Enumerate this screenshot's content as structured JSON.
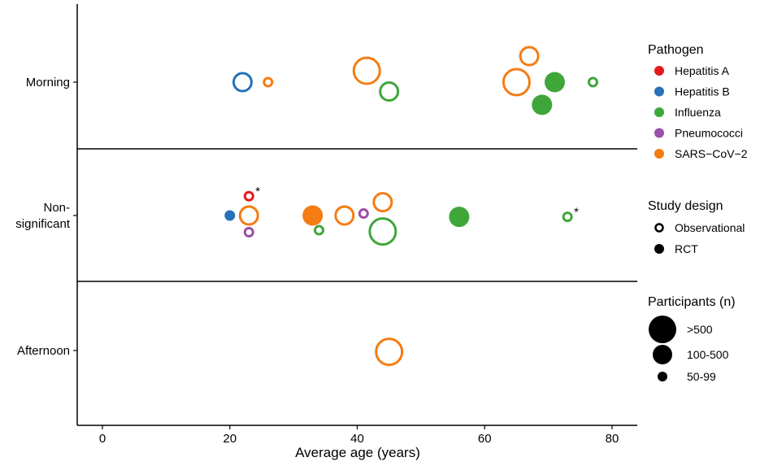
{
  "chart_data": {
    "type": "scatter",
    "title": "",
    "xlabel": "Average age (years)",
    "ylabel": "",
    "xlim": [
      -4,
      84
    ],
    "xticks": [
      0,
      20,
      40,
      60,
      80
    ],
    "xtick_labels": [
      "0",
      "20",
      "40",
      "60",
      "80"
    ],
    "grid": false,
    "rows": [
      {
        "key": "morning",
        "label": [
          "Morning"
        ]
      },
      {
        "key": "ns",
        "label": [
          "Non-",
          "significant"
        ]
      },
      {
        "key": "afternoon",
        "label": [
          "Afternoon"
        ]
      }
    ],
    "pathogens": [
      {
        "name": "Hepatitis A",
        "color": "#e41a1c"
      },
      {
        "name": "Hepatitis B",
        "color": "#2671b8"
      },
      {
        "name": "Influenza",
        "color": "#3fa63a"
      },
      {
        "name": "Pneumococci",
        "color": "#9a4fa8"
      },
      {
        "name": "SARS−CoV−2",
        "color": "#f57c12"
      }
    ],
    "designs": [
      "Observational",
      "RCT"
    ],
    "size_categories": [
      ">500",
      "100-500",
      "50-99"
    ],
    "points": [
      {
        "row": "morning",
        "x": 22,
        "offset": 0,
        "pathogen": "Hepatitis B",
        "design": "Observational",
        "size": "100-500"
      },
      {
        "row": "morning",
        "x": 26,
        "offset": 0,
        "pathogen": "SARS−CoV−2",
        "design": "Observational",
        "size": "50-99"
      },
      {
        "row": "morning",
        "x": 41.5,
        "offset": 0.17,
        "pathogen": "SARS−CoV−2",
        "design": "Observational",
        "size": ">500"
      },
      {
        "row": "morning",
        "x": 45,
        "offset": -0.14,
        "pathogen": "Influenza",
        "design": "Observational",
        "size": "100-500"
      },
      {
        "row": "morning",
        "x": 67,
        "offset": 0.39,
        "pathogen": "SARS−CoV−2",
        "design": "Observational",
        "size": "100-500"
      },
      {
        "row": "morning",
        "x": 65,
        "offset": 0,
        "pathogen": "SARS−CoV−2",
        "design": "Observational",
        "size": ">500"
      },
      {
        "row": "morning",
        "x": 71,
        "offset": 0,
        "pathogen": "Influenza",
        "design": "RCT",
        "size": "100-500"
      },
      {
        "row": "morning",
        "x": 69,
        "offset": -0.34,
        "pathogen": "Influenza",
        "design": "RCT",
        "size": "100-500"
      },
      {
        "row": "morning",
        "x": 77,
        "offset": 0,
        "pathogen": "Influenza",
        "design": "Observational",
        "size": "50-99"
      },
      {
        "row": "ns",
        "x": 23,
        "offset": 0.29,
        "pathogen": "Hepatitis A",
        "design": "Observational",
        "size": "50-99",
        "note": "*"
      },
      {
        "row": "ns",
        "x": 20,
        "offset": 0,
        "pathogen": "Hepatitis B",
        "design": "RCT",
        "size": "50-99"
      },
      {
        "row": "ns",
        "x": 23,
        "offset": 0,
        "pathogen": "SARS−CoV−2",
        "design": "Observational",
        "size": "100-500"
      },
      {
        "row": "ns",
        "x": 23,
        "offset": -0.25,
        "pathogen": "Pneumococci",
        "design": "Observational",
        "size": "50-99"
      },
      {
        "row": "ns",
        "x": 33,
        "offset": 0,
        "pathogen": "SARS−CoV−2",
        "design": "RCT",
        "size": "100-500"
      },
      {
        "row": "ns",
        "x": 34,
        "offset": -0.22,
        "pathogen": "Influenza",
        "design": "Observational",
        "size": "50-99"
      },
      {
        "row": "ns",
        "x": 38,
        "offset": 0,
        "pathogen": "SARS−CoV−2",
        "design": "Observational",
        "size": "100-500"
      },
      {
        "row": "ns",
        "x": 41,
        "offset": 0.03,
        "pathogen": "Pneumococci",
        "design": "Observational",
        "size": "50-99"
      },
      {
        "row": "ns",
        "x": 44,
        "offset": 0.2,
        "pathogen": "SARS−CoV−2",
        "design": "Observational",
        "size": "100-500"
      },
      {
        "row": "ns",
        "x": 44,
        "offset": -0.24,
        "pathogen": "Influenza",
        "design": "Observational",
        "size": ">500"
      },
      {
        "row": "ns",
        "x": 56,
        "offset": -0.02,
        "pathogen": "Influenza",
        "design": "RCT",
        "size": "100-500"
      },
      {
        "row": "ns",
        "x": 73,
        "offset": -0.02,
        "pathogen": "Influenza",
        "design": "Observational",
        "size": "50-99",
        "note": "*"
      },
      {
        "row": "afternoon",
        "x": 45,
        "offset": -0.02,
        "pathogen": "SARS−CoV−2",
        "design": "Observational",
        "size": ">500"
      }
    ]
  },
  "legend": {
    "pathogen_title": "Pathogen",
    "design_title": "Study design",
    "size_title": "Participants (n)"
  }
}
